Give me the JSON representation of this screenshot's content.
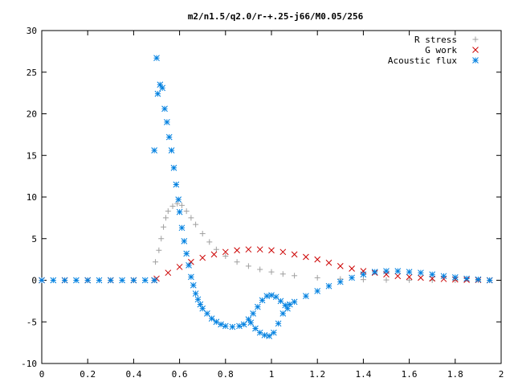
{
  "chart_data": {
    "type": "scatter",
    "title": "m2/n1.5/q2.0/r-+.25-j66/M0.05/256",
    "xlabel": "",
    "ylabel": "",
    "xlim": [
      0,
      2
    ],
    "ylim": [
      -10,
      30
    ],
    "x_ticks": [
      "0",
      "0.2",
      "0.4",
      "0.6",
      "0.8",
      "1",
      "1.2",
      "1.4",
      "1.6",
      "1.8",
      "2"
    ],
    "y_ticks": [
      "-10",
      "-5",
      "0",
      "5",
      "10",
      "15",
      "20",
      "25",
      "30"
    ],
    "grid": false,
    "legend_position": "top-right",
    "series": [
      {
        "name": "R stress",
        "marker": "plus",
        "color": "#a0a0a0",
        "points": [
          [
            0.0,
            0
          ],
          [
            0.1,
            0
          ],
          [
            0.2,
            0
          ],
          [
            0.3,
            0
          ],
          [
            0.4,
            0
          ],
          [
            0.49,
            0
          ],
          [
            0.495,
            2.2
          ],
          [
            0.51,
            3.6
          ],
          [
            0.52,
            5.0
          ],
          [
            0.53,
            6.4
          ],
          [
            0.54,
            7.5
          ],
          [
            0.55,
            8.3
          ],
          [
            0.57,
            8.9
          ],
          [
            0.59,
            9.2
          ],
          [
            0.61,
            9.0
          ],
          [
            0.63,
            8.3
          ],
          [
            0.65,
            7.5
          ],
          [
            0.67,
            6.7
          ],
          [
            0.7,
            5.6
          ],
          [
            0.73,
            4.6
          ],
          [
            0.76,
            3.7
          ],
          [
            0.8,
            2.9
          ],
          [
            0.85,
            2.2
          ],
          [
            0.9,
            1.7
          ],
          [
            0.95,
            1.3
          ],
          [
            1.0,
            1.0
          ],
          [
            1.05,
            0.75
          ],
          [
            1.1,
            0.55
          ],
          [
            1.2,
            0.3
          ],
          [
            1.3,
            0.15
          ],
          [
            1.4,
            0.08
          ],
          [
            1.5,
            0.04
          ],
          [
            1.6,
            0.02
          ],
          [
            1.7,
            0.01
          ],
          [
            1.8,
            0.0
          ],
          [
            1.9,
            0.0
          ],
          [
            1.95,
            0.0
          ]
        ]
      },
      {
        "name": "G work",
        "marker": "cross",
        "color": "#cc0000",
        "points": [
          [
            0.0,
            0
          ],
          [
            0.1,
            0
          ],
          [
            0.2,
            0
          ],
          [
            0.3,
            0
          ],
          [
            0.4,
            0
          ],
          [
            0.49,
            0
          ],
          [
            0.5,
            0.2
          ],
          [
            0.55,
            0.9
          ],
          [
            0.6,
            1.6
          ],
          [
            0.65,
            2.2
          ],
          [
            0.7,
            2.7
          ],
          [
            0.75,
            3.1
          ],
          [
            0.8,
            3.4
          ],
          [
            0.85,
            3.6
          ],
          [
            0.9,
            3.7
          ],
          [
            0.95,
            3.7
          ],
          [
            1.0,
            3.6
          ],
          [
            1.05,
            3.4
          ],
          [
            1.1,
            3.1
          ],
          [
            1.15,
            2.8
          ],
          [
            1.2,
            2.5
          ],
          [
            1.25,
            2.1
          ],
          [
            1.3,
            1.7
          ],
          [
            1.35,
            1.4
          ],
          [
            1.4,
            1.1
          ],
          [
            1.45,
            0.9
          ],
          [
            1.5,
            0.7
          ],
          [
            1.55,
            0.5
          ],
          [
            1.6,
            0.4
          ],
          [
            1.65,
            0.3
          ],
          [
            1.7,
            0.2
          ],
          [
            1.75,
            0.15
          ],
          [
            1.8,
            0.1
          ],
          [
            1.85,
            0.05
          ],
          [
            1.9,
            0.03
          ],
          [
            1.95,
            0.0
          ]
        ]
      },
      {
        "name": "Acoustic flux",
        "marker": "star",
        "color": "#0080e0",
        "points": [
          [
            0.0,
            0
          ],
          [
            0.05,
            0
          ],
          [
            0.1,
            0
          ],
          [
            0.15,
            0
          ],
          [
            0.2,
            0
          ],
          [
            0.25,
            0
          ],
          [
            0.3,
            0
          ],
          [
            0.35,
            0
          ],
          [
            0.4,
            0
          ],
          [
            0.45,
            0
          ],
          [
            0.49,
            0
          ],
          [
            0.49,
            15.6
          ],
          [
            0.5,
            26.7
          ],
          [
            0.505,
            22.4
          ],
          [
            0.515,
            23.5
          ],
          [
            0.525,
            23.1
          ],
          [
            0.535,
            20.6
          ],
          [
            0.545,
            19.0
          ],
          [
            0.555,
            17.2
          ],
          [
            0.565,
            15.6
          ],
          [
            0.575,
            13.5
          ],
          [
            0.585,
            11.5
          ],
          [
            0.595,
            9.7
          ],
          [
            0.6,
            8.2
          ],
          [
            0.61,
            6.3
          ],
          [
            0.62,
            4.7
          ],
          [
            0.63,
            3.2
          ],
          [
            0.64,
            1.8
          ],
          [
            0.65,
            0.4
          ],
          [
            0.66,
            -0.6
          ],
          [
            0.67,
            -1.6
          ],
          [
            0.68,
            -2.3
          ],
          [
            0.69,
            -2.9
          ],
          [
            0.7,
            -3.4
          ],
          [
            0.72,
            -4.0
          ],
          [
            0.74,
            -4.6
          ],
          [
            0.76,
            -5.0
          ],
          [
            0.78,
            -5.3
          ],
          [
            0.8,
            -5.5
          ],
          [
            0.83,
            -5.6
          ],
          [
            0.86,
            -5.5
          ],
          [
            0.88,
            -5.3
          ],
          [
            0.9,
            -4.7
          ],
          [
            0.92,
            -4.0
          ],
          [
            0.94,
            -3.2
          ],
          [
            0.96,
            -2.4
          ],
          [
            0.98,
            -1.9
          ],
          [
            1.0,
            -1.8
          ],
          [
            1.02,
            -2.0
          ],
          [
            1.04,
            -2.5
          ],
          [
            1.06,
            -3.0
          ],
          [
            1.08,
            -2.9
          ],
          [
            1.1,
            -2.6
          ],
          [
            1.15,
            -1.9
          ],
          [
            1.2,
            -1.3
          ],
          [
            1.25,
            -0.7
          ],
          [
            1.3,
            -0.2
          ],
          [
            1.35,
            0.3
          ],
          [
            1.4,
            0.7
          ],
          [
            1.45,
            1.0
          ],
          [
            1.5,
            1.1
          ],
          [
            1.55,
            1.1
          ],
          [
            1.6,
            1.0
          ],
          [
            1.65,
            0.9
          ],
          [
            1.7,
            0.7
          ],
          [
            1.75,
            0.5
          ],
          [
            1.8,
            0.35
          ],
          [
            1.85,
            0.2
          ],
          [
            1.9,
            0.1
          ],
          [
            1.95,
            0.0
          ],
          [
            0.91,
            -5.1
          ],
          [
            0.93,
            -5.8
          ],
          [
            0.95,
            -6.3
          ],
          [
            0.97,
            -6.6
          ],
          [
            0.99,
            -6.7
          ],
          [
            1.01,
            -6.3
          ],
          [
            1.03,
            -5.2
          ],
          [
            1.05,
            -4.0
          ],
          [
            1.07,
            -3.4
          ]
        ]
      }
    ]
  }
}
